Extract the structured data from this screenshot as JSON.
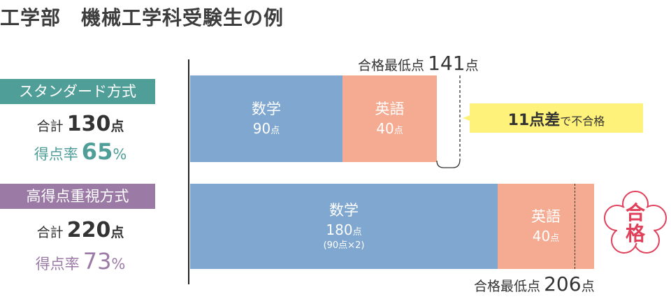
{
  "title": "工学部　機械工学科受験生の例",
  "methods": [
    {
      "name": "スタンダード方式",
      "total_label": "合計",
      "total": "130",
      "total_unit": "点",
      "rate_label": "得点率",
      "rate": "65",
      "rate_unit": "%",
      "segments": [
        {
          "subject": "数学",
          "score": "90",
          "unit": "点"
        },
        {
          "subject": "英語",
          "score": "40",
          "unit": "点"
        }
      ],
      "pass_line": {
        "label": "合格最低点",
        "score": "141",
        "unit": "点"
      },
      "result": {
        "gap": "11点差",
        "text": "で不合格"
      }
    },
    {
      "name": "高得点重視方式",
      "total_label": "合計",
      "total": "220",
      "total_unit": "点",
      "rate_label": "得点率",
      "rate": "73",
      "rate_unit": "%",
      "segments": [
        {
          "subject": "数学",
          "score": "180",
          "unit": "点",
          "note": "(90点×2)"
        },
        {
          "subject": "英語",
          "score": "40",
          "unit": "点"
        }
      ],
      "pass_line": {
        "label": "合格最低点",
        "score": "206",
        "unit": "点"
      },
      "result": {
        "badge": "合格"
      }
    }
  ]
}
